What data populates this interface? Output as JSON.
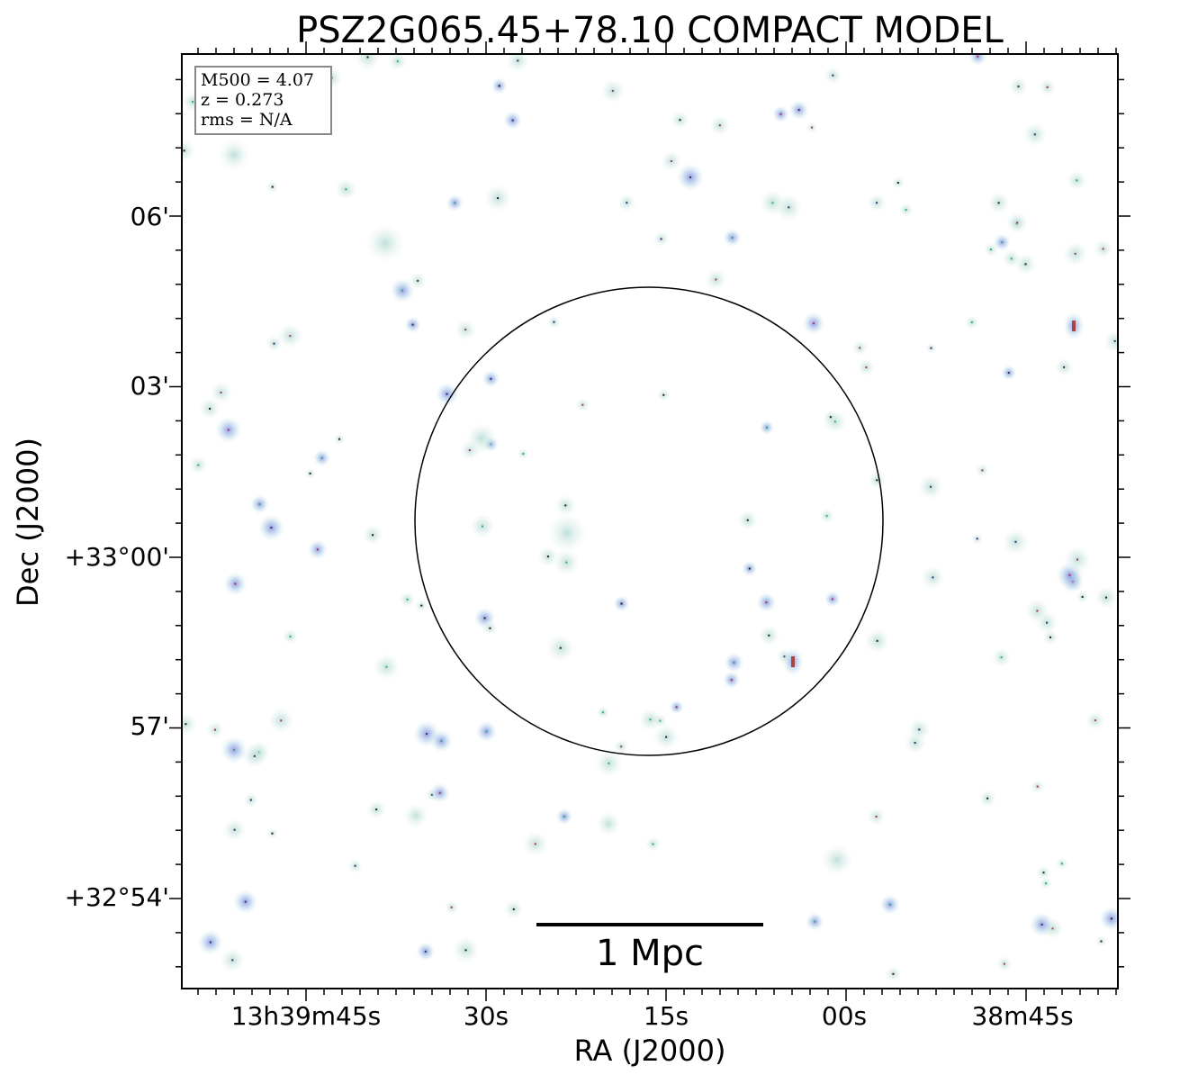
{
  "title": "PSZ2G065.45+78.10 COMPACT MODEL",
  "x_axis": {
    "label": "RA (J2000)",
    "ticks": [
      "13h39m45s",
      "30s",
      "15s",
      "00s",
      "38m45s"
    ]
  },
  "y_axis": {
    "label": "Dec (J2000)",
    "ticks": [
      "06'",
      "03'",
      "+33°00'",
      "57'",
      "+32°54'"
    ]
  },
  "info_box": {
    "lines": [
      "M500 = 4.07",
      "z = 0.273",
      "rms = N/A"
    ]
  },
  "scale_bar": {
    "label": "1 Mpc"
  }
}
